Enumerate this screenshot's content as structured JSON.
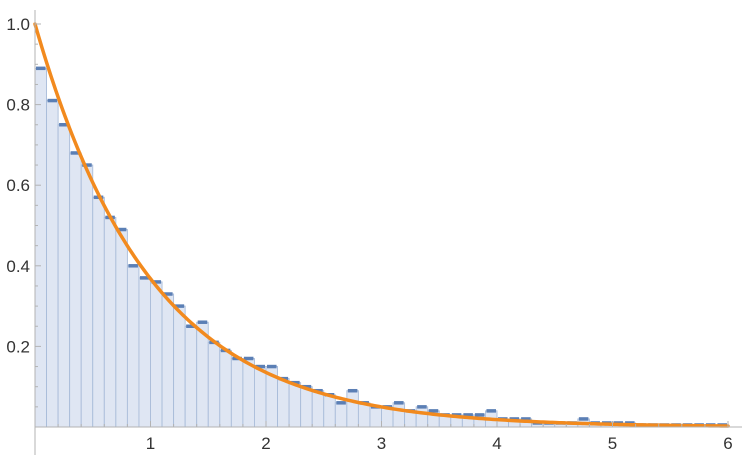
{
  "chart_data": {
    "type": "bar",
    "subtype": "histogram-with-density-curve",
    "title": "",
    "xlabel": "",
    "ylabel": "",
    "xlim": [
      0,
      6
    ],
    "ylim": [
      0,
      1.0
    ],
    "grid": false,
    "legend": "none",
    "bin_width": 0.1,
    "bin_starts": [
      0.0,
      0.1,
      0.2,
      0.3,
      0.4,
      0.5,
      0.6,
      0.7,
      0.8,
      0.9,
      1.0,
      1.1,
      1.2,
      1.3,
      1.4,
      1.5,
      1.6,
      1.7,
      1.8,
      1.9,
      2.0,
      2.1,
      2.2,
      2.3,
      2.4,
      2.5,
      2.6,
      2.7,
      2.8,
      2.9,
      3.0,
      3.1,
      3.2,
      3.3,
      3.4,
      3.5,
      3.6,
      3.7,
      3.8,
      3.9,
      4.0,
      4.1,
      4.2,
      4.3,
      4.4,
      4.5,
      4.6,
      4.7,
      4.8,
      4.9,
      5.0,
      5.1,
      5.2,
      5.3,
      5.4,
      5.5,
      5.6,
      5.7,
      5.8,
      5.9
    ],
    "values": [
      0.89,
      0.81,
      0.75,
      0.68,
      0.65,
      0.57,
      0.52,
      0.49,
      0.4,
      0.37,
      0.36,
      0.33,
      0.3,
      0.25,
      0.26,
      0.21,
      0.19,
      0.17,
      0.17,
      0.15,
      0.15,
      0.12,
      0.11,
      0.1,
      0.09,
      0.08,
      0.06,
      0.09,
      0.06,
      0.05,
      0.05,
      0.06,
      0.04,
      0.05,
      0.04,
      0.03,
      0.03,
      0.03,
      0.03,
      0.04,
      0.02,
      0.02,
      0.02,
      0.01,
      0.01,
      0.01,
      0.01,
      0.02,
      0.01,
      0.01,
      0.01,
      0.01,
      0.005,
      0.005,
      0.005,
      0.005,
      0.005,
      0.005,
      0.005,
      0.005
    ],
    "curve": {
      "type": "line",
      "function": "exp(-x)",
      "x_range": [
        0,
        6
      ]
    },
    "x_ticks": [
      1,
      2,
      3,
      4,
      5,
      6
    ],
    "x_tick_labels": [
      "1",
      "2",
      "3",
      "4",
      "5",
      "6"
    ],
    "y_ticks": [
      0.2,
      0.4,
      0.6,
      0.8,
      1.0
    ],
    "y_tick_labels": [
      "0.2",
      "0.4",
      "0.6",
      "0.8",
      "1.0"
    ],
    "colors": {
      "bar_fill": "#dfe6f3",
      "bar_edge": "#a9bcd9",
      "bar_top": "#5b7fb5",
      "curve": "#f28a1e",
      "axis": "#b3b3b3"
    }
  }
}
